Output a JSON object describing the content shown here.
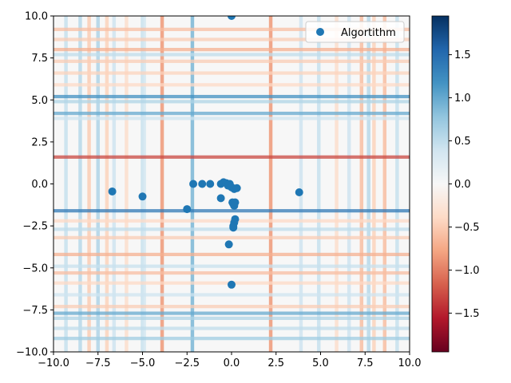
{
  "chart_data": {
    "type": "scatter",
    "background": "heatmap",
    "xlim": [
      -10,
      10
    ],
    "ylim": [
      -10,
      10
    ],
    "x_ticks": [
      -10,
      -7.5,
      -5,
      -2.5,
      0,
      2.5,
      5,
      7.5,
      10
    ],
    "x_tick_labels": [
      "−10.0",
      "−7.5",
      "−5.0",
      "−2.5",
      "0.0",
      "2.5",
      "5.0",
      "7.5",
      "10.0"
    ],
    "y_ticks": [
      -10,
      -7.5,
      -5,
      -2.5,
      0,
      2.5,
      5,
      7.5,
      10
    ],
    "y_tick_labels": [
      "−10.0",
      "−7.5",
      "−5.0",
      "−2.5",
      "0.0",
      "2.5",
      "5.0",
      "7.5",
      "10.0"
    ],
    "legend": {
      "placement": "top-right",
      "entries": [
        "Algortithm"
      ]
    },
    "colormap": "RdBu",
    "colorbar": {
      "range": [
        -1.95,
        1.95
      ],
      "ticks": [
        -1.5,
        -1.0,
        -0.5,
        0.0,
        0.5,
        1.0,
        1.5
      ],
      "tick_labels": [
        "−1.5",
        "−1.0",
        "−0.5",
        "0.0",
        "0.5",
        "1.0",
        "1.5"
      ]
    },
    "heatmap_columns": [
      {
        "x": -9.3,
        "value": 0.45
      },
      {
        "x": -8.5,
        "value": 0.55
      },
      {
        "x": -8.0,
        "value": -0.5
      },
      {
        "x": -7.5,
        "value": 0.6
      },
      {
        "x": -7.0,
        "value": -0.45
      },
      {
        "x": -6.6,
        "value": 0.4
      },
      {
        "x": -5.9,
        "value": -0.35
      },
      {
        "x": -5.0,
        "value": 0.45
      },
      {
        "x": -4.9,
        "value": 0.35
      },
      {
        "x": -3.9,
        "value": -0.85
      },
      {
        "x": -2.2,
        "value": 0.9
      },
      {
        "x": 2.2,
        "value": -0.85
      },
      {
        "x": 3.9,
        "value": 0.4
      },
      {
        "x": 4.9,
        "value": 0.45
      },
      {
        "x": 5.9,
        "value": -0.35
      },
      {
        "x": 6.6,
        "value": 0.4
      },
      {
        "x": 7.3,
        "value": -0.6
      },
      {
        "x": 7.7,
        "value": 0.55
      },
      {
        "x": 8.0,
        "value": -0.45
      },
      {
        "x": 8.6,
        "value": -0.6
      },
      {
        "x": 9.3,
        "value": 0.45
      }
    ],
    "heatmap_rows": [
      {
        "y": 9.2,
        "value": -0.6
      },
      {
        "y": 8.6,
        "value": -0.5
      },
      {
        "y": 8.0,
        "value": -0.7
      },
      {
        "y": 7.7,
        "value": 0.5
      },
      {
        "y": 7.3,
        "value": -0.5
      },
      {
        "y": 6.6,
        "value": -0.45
      },
      {
        "y": 5.9,
        "value": -0.4
      },
      {
        "y": 5.2,
        "value": 1.2
      },
      {
        "y": 4.9,
        "value": 0.6
      },
      {
        "y": 4.2,
        "value": 1.0
      },
      {
        "y": 3.9,
        "value": 0.4
      },
      {
        "y": 1.6,
        "value": -1.3
      },
      {
        "y": -1.6,
        "value": 1.4
      },
      {
        "y": -2.2,
        "value": -0.4
      },
      {
        "y": -2.7,
        "value": 0.5
      },
      {
        "y": -3.2,
        "value": -0.5
      },
      {
        "y": -4.2,
        "value": -0.7
      },
      {
        "y": -4.9,
        "value": 0.45
      },
      {
        "y": -5.3,
        "value": -0.6
      },
      {
        "y": -5.9,
        "value": -0.4
      },
      {
        "y": -6.6,
        "value": 0.4
      },
      {
        "y": -7.3,
        "value": -0.5
      },
      {
        "y": -7.7,
        "value": 1.0
      },
      {
        "y": -8.0,
        "value": 0.6
      },
      {
        "y": -8.6,
        "value": 0.5
      },
      {
        "y": -9.2,
        "value": 0.7
      }
    ],
    "series": [
      {
        "name": "Algortithm",
        "color": "#1f77b4",
        "points": [
          [
            0.0,
            10.0
          ],
          [
            -6.7,
            -0.45
          ],
          [
            -5.0,
            -0.75
          ],
          [
            -2.5,
            -1.5
          ],
          [
            -2.15,
            0.0
          ],
          [
            -1.65,
            0.0
          ],
          [
            -1.2,
            0.0
          ],
          [
            -0.6,
            0.0
          ],
          [
            -0.45,
            0.1
          ],
          [
            -0.3,
            0.05
          ],
          [
            -0.2,
            -0.1
          ],
          [
            -0.1,
            0.0
          ],
          [
            0.0,
            -0.2
          ],
          [
            0.15,
            -0.3
          ],
          [
            0.3,
            -0.25
          ],
          [
            -0.6,
            -0.85
          ],
          [
            0.05,
            -1.1
          ],
          [
            0.1,
            -1.2
          ],
          [
            0.15,
            -1.3
          ],
          [
            0.2,
            -1.1
          ],
          [
            0.2,
            -2.1
          ],
          [
            0.15,
            -2.3
          ],
          [
            0.1,
            -2.5
          ],
          [
            0.1,
            -2.6
          ],
          [
            -0.15,
            -3.6
          ],
          [
            0.0,
            -6.0
          ],
          [
            3.8,
            -0.5
          ]
        ]
      }
    ]
  }
}
